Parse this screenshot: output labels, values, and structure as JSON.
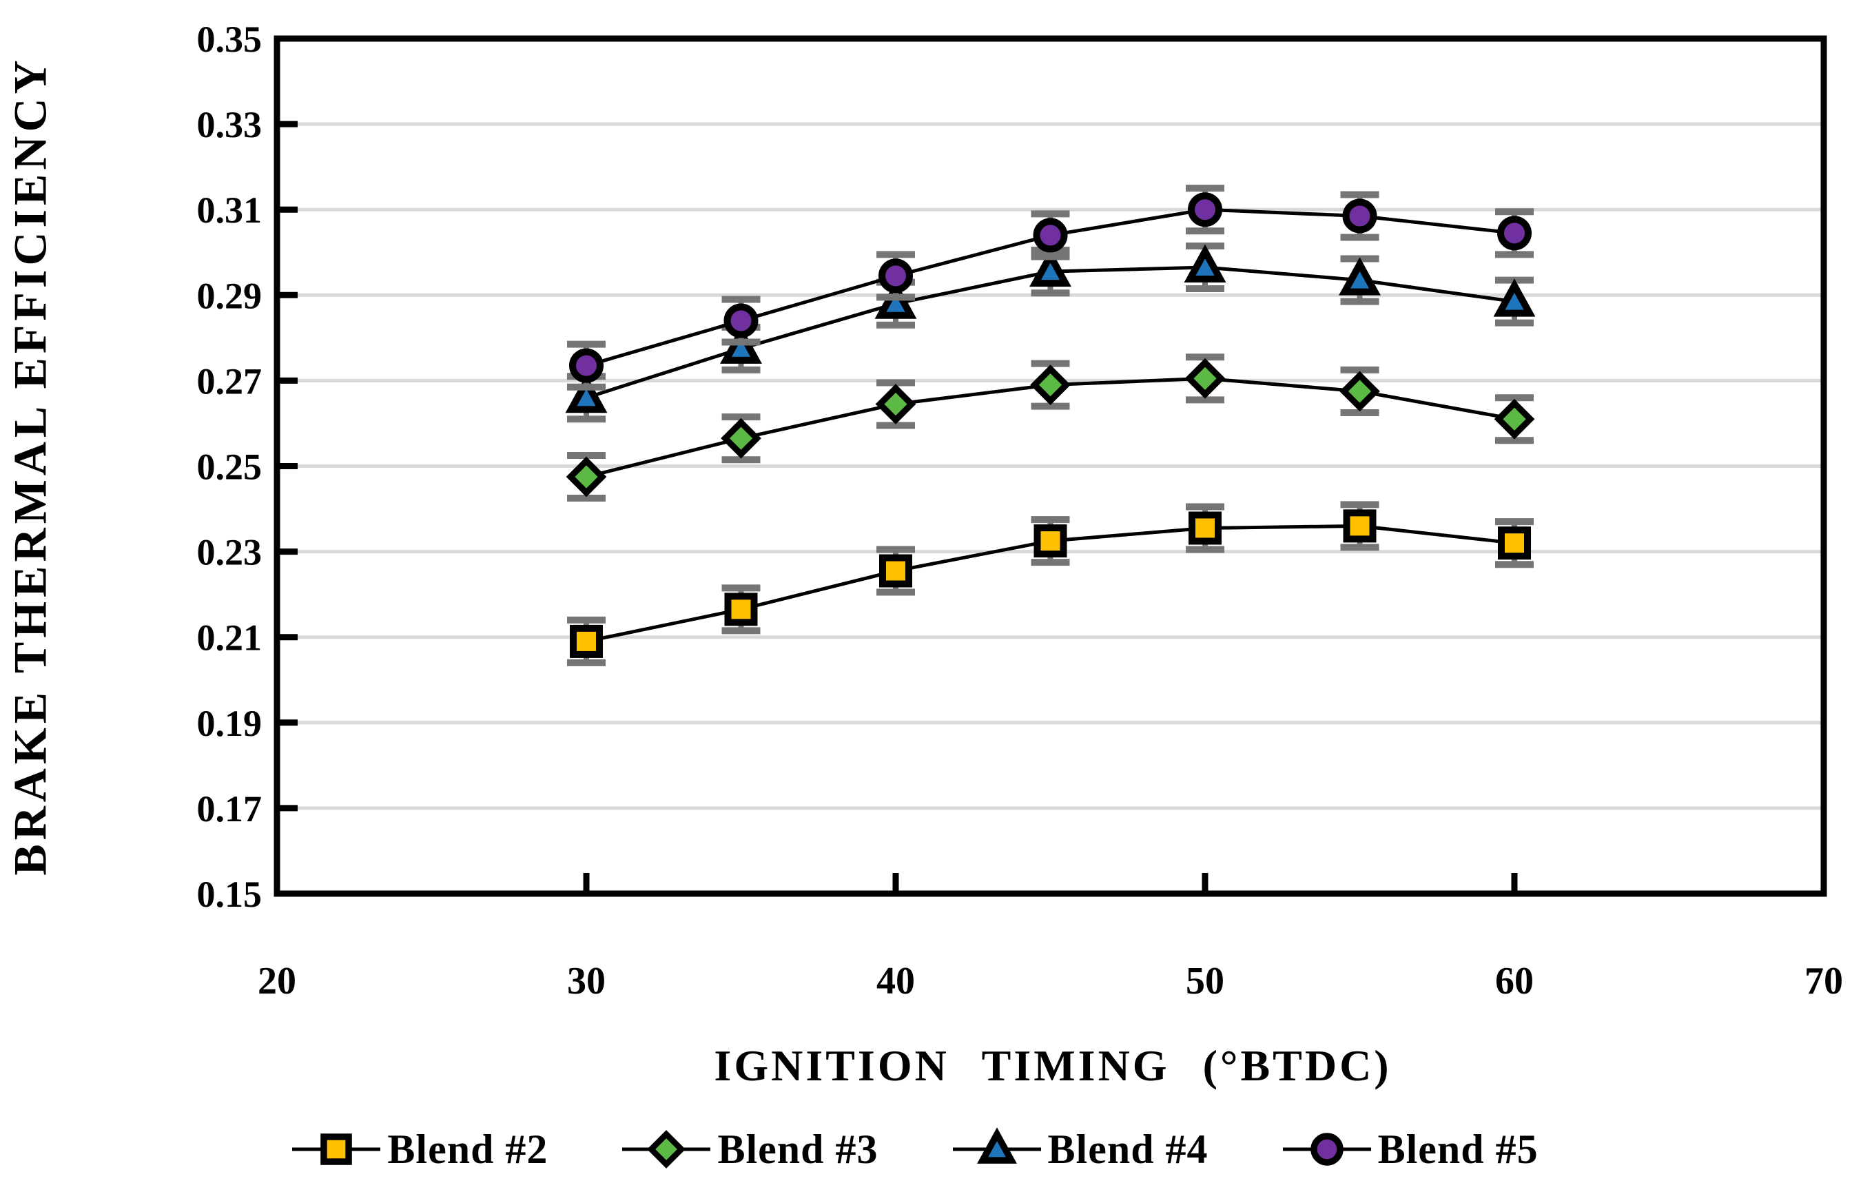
{
  "figure": {
    "background": "#FFFFFF",
    "colors": {
      "axis": "#000000",
      "grid": "#D9D9D9",
      "error_bar": "#757575",
      "text": "#000000"
    }
  },
  "chart_data": {
    "type": "line",
    "title": "",
    "xlabel": "IGNITION TIMING (°BTDC)",
    "ylabel": "BRAKE THERMAL EFFICIENCY",
    "xlim": [
      20,
      70
    ],
    "ylim": [
      0.15,
      0.35
    ],
    "x_ticks": [
      20,
      30,
      40,
      50,
      60,
      70
    ],
    "x_tick_labels": [
      "20",
      "30",
      "40",
      "50",
      "60",
      "70"
    ],
    "y_ticks": [
      0.15,
      0.17,
      0.19,
      0.21,
      0.23,
      0.25,
      0.27,
      0.29,
      0.31,
      0.33,
      0.35
    ],
    "y_tick_labels": [
      "0.15",
      "0.17",
      "0.19",
      "0.21",
      "0.23",
      "0.25",
      "0.27",
      "0.29",
      "0.31",
      "0.33",
      "0.35"
    ],
    "grid": "horizontal",
    "legend_position": "bottom",
    "x": [
      30,
      35,
      40,
      45,
      50,
      55,
      60
    ],
    "series": [
      {
        "name": "Blend #2",
        "marker": "square",
        "color": "#FFC000",
        "line_color": "#000000",
        "error_bar": 0.005,
        "values": [
          0.209,
          0.2165,
          0.2255,
          0.2325,
          0.2355,
          0.236,
          0.232
        ]
      },
      {
        "name": "Blend #3",
        "marker": "diamond",
        "color": "#5CB946",
        "line_color": "#000000",
        "error_bar": 0.005,
        "values": [
          0.2475,
          0.2565,
          0.2645,
          0.269,
          0.2705,
          0.2675,
          0.261
        ]
      },
      {
        "name": "Blend #4",
        "marker": "triangle",
        "color": "#1F75BC",
        "line_color": "#000000",
        "error_bar": 0.005,
        "values": [
          0.266,
          0.2775,
          0.288,
          0.2955,
          0.2965,
          0.2935,
          0.2885
        ]
      },
      {
        "name": "Blend #5",
        "marker": "circle",
        "color": "#7030A0",
        "line_color": "#000000",
        "error_bar": 0.005,
        "values": [
          0.2735,
          0.284,
          0.2945,
          0.304,
          0.31,
          0.3085,
          0.3045
        ]
      }
    ]
  }
}
